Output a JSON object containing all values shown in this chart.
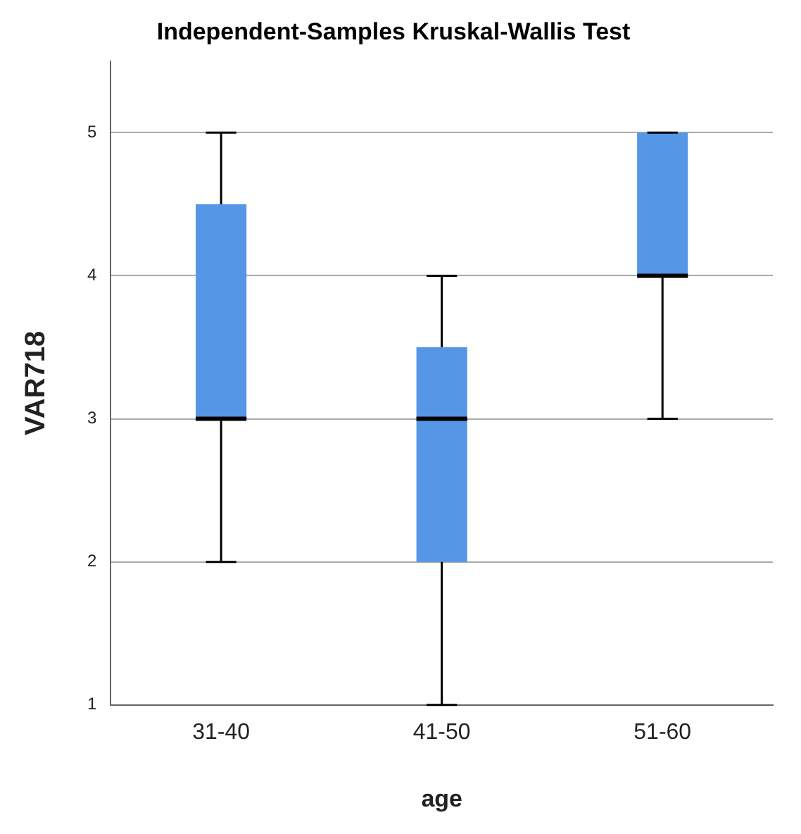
{
  "chart_data": {
    "type": "box",
    "title": "Independent-Samples Kruskal-Wallis Test",
    "xlabel": "age",
    "ylabel": "VAR718",
    "categories": [
      "31-40",
      "41-50",
      "51-60"
    ],
    "color": "#5596e6",
    "boxes": [
      {
        "low": 2,
        "q1": 3,
        "median": 3,
        "q3": 4.5,
        "high": 5
      },
      {
        "low": 1,
        "q1": 2,
        "median": 3,
        "q3": 3.5,
        "high": 4
      },
      {
        "low": 3,
        "q1": 4,
        "median": 4,
        "q3": 5,
        "high": 5
      }
    ],
    "ylim": [
      1,
      5.5
    ],
    "yticks": [
      1,
      2,
      3,
      4,
      5
    ],
    "grid": "y"
  }
}
